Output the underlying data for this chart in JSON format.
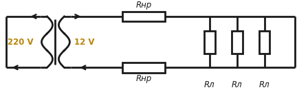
{
  "fig_width": 4.48,
  "fig_height": 1.31,
  "dpi": 100,
  "bg_color": "#ffffff",
  "line_color": "#1a1a1a",
  "line_width": 2.0,
  "label_220": "220 V",
  "label_12": "12 V",
  "label_Rnp_top": "Rнр",
  "label_Rnp_bot": "Rнр",
  "label_Rl": "Rл",
  "font_size": 8.5,
  "font_color_voltage": "#b8860b",
  "font_color_label": "#1a1a1a"
}
